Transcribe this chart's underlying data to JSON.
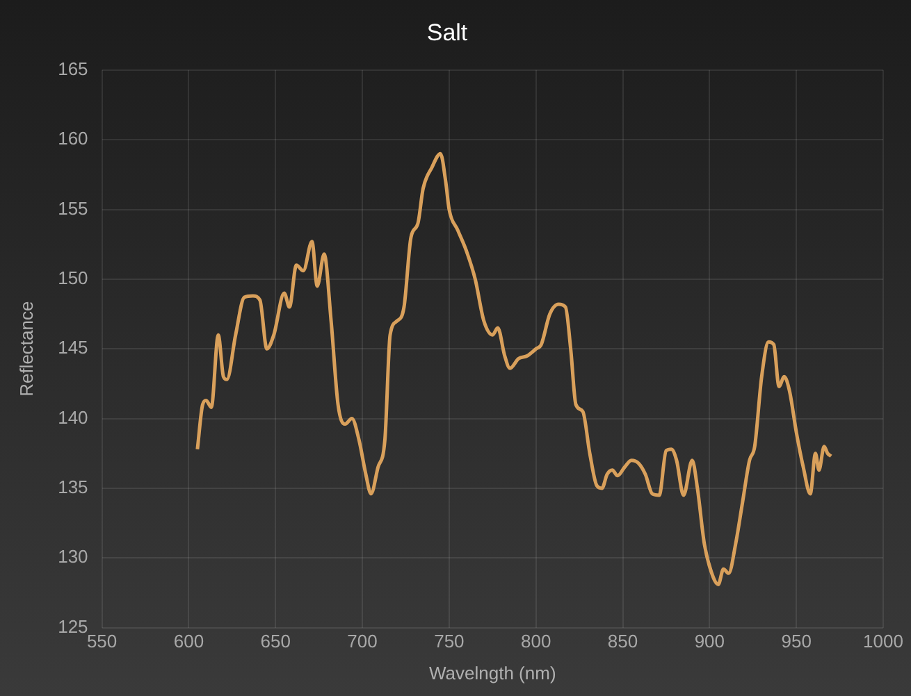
{
  "chart_data": {
    "type": "line",
    "title": "Salt",
    "xlabel": "Wavelngth (nm)",
    "ylabel": "Reflectance",
    "x": [
      605,
      608,
      610,
      613,
      617,
      620,
      622,
      627,
      632,
      637,
      641,
      645,
      649,
      655,
      658,
      662,
      666,
      671,
      674,
      678,
      682,
      686,
      690,
      694,
      698,
      702,
      705,
      709,
      713,
      716,
      720,
      724,
      728,
      732,
      735,
      740,
      745,
      748,
      750,
      755,
      760,
      765,
      770,
      775,
      778,
      782,
      785,
      790,
      795,
      800,
      803,
      808,
      813,
      817,
      820,
      823,
      827,
      831,
      835,
      838,
      841,
      844,
      847,
      851,
      855,
      859,
      863,
      867,
      871,
      875,
      878,
      881,
      885,
      890,
      893,
      897,
      901,
      905,
      908,
      911,
      915,
      919,
      923,
      926,
      930,
      934,
      937,
      940,
      943,
      946,
      950,
      954,
      958,
      961,
      963,
      966,
      968,
      970
    ],
    "series": [
      {
        "color": "#d9a05b",
        "values": [
          137.8,
          141,
          141.3,
          140.8,
          146,
          143,
          142.8,
          146,
          148.7,
          148.8,
          148.5,
          145,
          146,
          149,
          148,
          151,
          150.6,
          152.7,
          149.5,
          151.8,
          147,
          141,
          139.6,
          140,
          138.5,
          136,
          134.6,
          136.5,
          138.5,
          146,
          147,
          148,
          153,
          154,
          156.5,
          158,
          159,
          157,
          155,
          153.5,
          152,
          150,
          147,
          146,
          146.5,
          144.5,
          143.6,
          144.3,
          144.5,
          145,
          145.3,
          147.5,
          148.2,
          148,
          145,
          141,
          140.5,
          137.5,
          135.2,
          135,
          136,
          136.3,
          135.9,
          136.5,
          137,
          136.8,
          136,
          134.6,
          134.5,
          137.7,
          137.8,
          137,
          134.5,
          137,
          135,
          131,
          129,
          128.1,
          129.2,
          128.9,
          131,
          134,
          137,
          138,
          143,
          145.5,
          145.3,
          142.3,
          143,
          142,
          139,
          136.5,
          134.6,
          137.5,
          136.3,
          138,
          137.5,
          137.3
        ]
      }
    ],
    "xlim": [
      550,
      1000
    ],
    "xticks": [
      550,
      600,
      650,
      700,
      750,
      800,
      850,
      900,
      950,
      1000
    ],
    "ylim": [
      125,
      165
    ],
    "yticks": [
      125,
      130,
      135,
      140,
      145,
      150,
      155,
      160,
      165
    ],
    "grid": true,
    "legend": false,
    "marker": "none",
    "line_style": "solid"
  }
}
